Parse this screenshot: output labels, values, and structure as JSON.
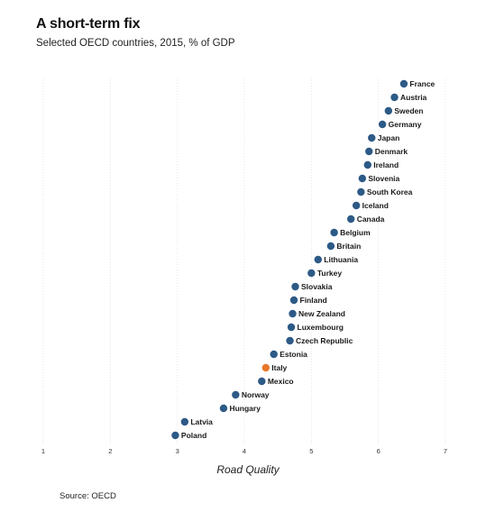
{
  "chart_data": {
    "type": "scatter",
    "title": "A short-term fix",
    "subtitle": "Selected OECD countries, 2015, % of GDP",
    "xlabel": "Road Quality",
    "ylabel": "",
    "xlim": [
      1,
      7
    ],
    "xticks": [
      "1",
      "2",
      "3",
      "4",
      "5",
      "6",
      "7"
    ],
    "grid": "vertical",
    "source": "Source: OECD",
    "colors": {
      "default": "#2d5a86",
      "highlight": "#e8772e",
      "grid": "#e6e6e6"
    },
    "points": [
      {
        "label": "France",
        "x": 6.38,
        "highlight": false
      },
      {
        "label": "Austria",
        "x": 6.24,
        "highlight": false
      },
      {
        "label": "Sweden",
        "x": 6.15,
        "highlight": false
      },
      {
        "label": "Germany",
        "x": 6.06,
        "highlight": false
      },
      {
        "label": "Japan",
        "x": 5.9,
        "highlight": false
      },
      {
        "label": "Denmark",
        "x": 5.86,
        "highlight": false
      },
      {
        "label": "Ireland",
        "x": 5.84,
        "highlight": false
      },
      {
        "label": "Slovenia",
        "x": 5.76,
        "highlight": false
      },
      {
        "label": "South Korea",
        "x": 5.74,
        "highlight": false
      },
      {
        "label": "Iceland",
        "x": 5.67,
        "highlight": false
      },
      {
        "label": "Canada",
        "x": 5.59,
        "highlight": false
      },
      {
        "label": "Belgium",
        "x": 5.34,
        "highlight": false
      },
      {
        "label": "Britain",
        "x": 5.29,
        "highlight": false
      },
      {
        "label": "Lithuania",
        "x": 5.1,
        "highlight": false
      },
      {
        "label": "Turkey",
        "x": 5.0,
        "highlight": false
      },
      {
        "label": "Slovakia",
        "x": 4.76,
        "highlight": false
      },
      {
        "label": "Finland",
        "x": 4.74,
        "highlight": false
      },
      {
        "label": "New Zealand",
        "x": 4.72,
        "highlight": false
      },
      {
        "label": "Luxembourg",
        "x": 4.7,
        "highlight": false
      },
      {
        "label": "Czech Republic",
        "x": 4.68,
        "highlight": false
      },
      {
        "label": "Estonia",
        "x": 4.44,
        "highlight": false
      },
      {
        "label": "Italy",
        "x": 4.32,
        "highlight": true
      },
      {
        "label": "Mexico",
        "x": 4.26,
        "highlight": false
      },
      {
        "label": "Norway",
        "x": 3.87,
        "highlight": false
      },
      {
        "label": "Hungary",
        "x": 3.69,
        "highlight": false
      },
      {
        "label": "Latvia",
        "x": 3.11,
        "highlight": false
      },
      {
        "label": "Poland",
        "x": 2.97,
        "highlight": false
      }
    ]
  }
}
